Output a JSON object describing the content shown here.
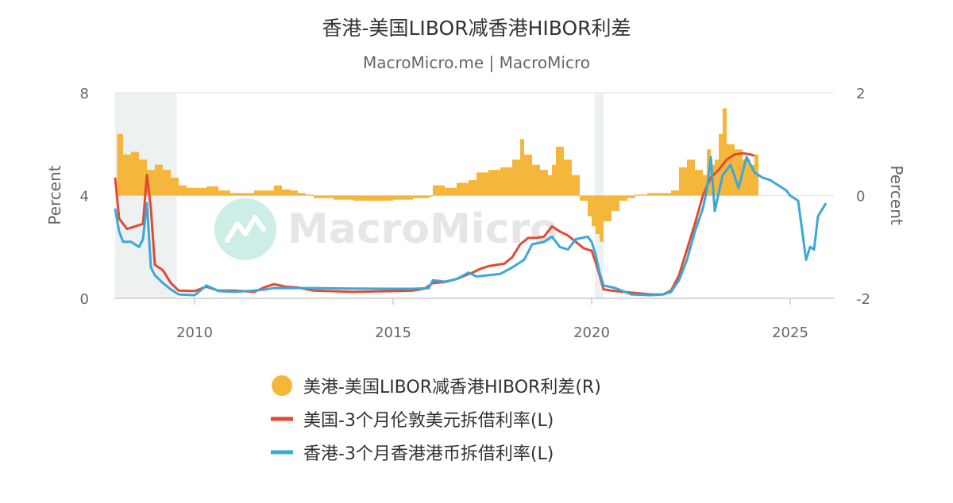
{
  "chart_data": {
    "type": "line",
    "title": "香港-美国LIBOR减香港HIBOR利差",
    "subtitle": "MacroMicro.me | MacroMicro",
    "watermark": "MacroMicro",
    "x_ticks": [
      "2010",
      "2015",
      "2020",
      "2025"
    ],
    "x_range": [
      2008.0,
      2025.95
    ],
    "y_left": {
      "label": "Percent",
      "ticks": [
        "0",
        "4",
        "8"
      ],
      "range": [
        0,
        8
      ]
    },
    "y_right": {
      "label": "Percent",
      "ticks": [
        "-2",
        "0",
        "2"
      ],
      "range": [
        -2,
        2
      ]
    },
    "shaded_periods": [
      [
        2008.0,
        2009.55
      ],
      [
        2020.08,
        2020.3
      ]
    ],
    "grid": true,
    "legend_position": "bottom",
    "series": [
      {
        "name": "美港-美国LIBOR减香港HIBOR利差(R)",
        "kind": "bar",
        "axis": "right",
        "color": "#f5b73b",
        "x": [
          2008.05,
          2008.2,
          2008.4,
          2008.6,
          2008.8,
          2009.0,
          2009.2,
          2009.4,
          2009.6,
          2009.8,
          2010.0,
          2010.3,
          2010.6,
          2010.9,
          2011.2,
          2011.5,
          2011.8,
          2012.0,
          2012.2,
          2012.4,
          2012.6,
          2012.8,
          2013.0,
          2013.5,
          2014.0,
          2014.5,
          2015.0,
          2015.5,
          2015.9,
          2016.0,
          2016.3,
          2016.6,
          2016.9,
          2017.1,
          2017.4,
          2017.7,
          2018.0,
          2018.2,
          2018.3,
          2018.5,
          2018.7,
          2018.9,
          2019.0,
          2019.1,
          2019.3,
          2019.5,
          2019.7,
          2019.9,
          2020.0,
          2020.1,
          2020.2,
          2020.3,
          2020.5,
          2020.7,
          2020.9,
          2021.1,
          2021.4,
          2021.7,
          2022.0,
          2022.2,
          2022.4,
          2022.6,
          2022.8,
          2022.9,
          2023.0,
          2023.1,
          2023.2,
          2023.3,
          2023.4,
          2023.6,
          2023.8,
          2024.0,
          2024.1
        ],
        "values": [
          1.2,
          0.8,
          0.85,
          0.7,
          0.5,
          0.6,
          0.5,
          0.35,
          0.2,
          0.15,
          0.15,
          0.18,
          0.1,
          0.05,
          0.05,
          0.1,
          0.1,
          0.2,
          0.12,
          0.1,
          0.05,
          0.02,
          -0.05,
          -0.08,
          -0.1,
          -0.1,
          -0.08,
          -0.05,
          -0.02,
          0.2,
          0.15,
          0.25,
          0.3,
          0.45,
          0.5,
          0.55,
          0.7,
          1.1,
          0.8,
          0.6,
          0.5,
          0.4,
          0.6,
          0.95,
          0.7,
          0.4,
          -0.1,
          -0.4,
          -0.6,
          -0.75,
          -0.9,
          -0.5,
          -0.3,
          -0.1,
          -0.05,
          0.02,
          0.05,
          0.05,
          0.1,
          0.55,
          0.7,
          0.5,
          0.4,
          0.9,
          0.6,
          0.7,
          1.2,
          1.7,
          1.0,
          0.9,
          0.7,
          0.6,
          0.8
        ]
      },
      {
        "name": "美国-3个月伦敦美元拆借利率(L)",
        "kind": "line",
        "axis": "left",
        "color": "#e24a33",
        "x": [
          2008.0,
          2008.1,
          2008.2,
          2008.3,
          2008.5,
          2008.7,
          2008.8,
          2008.9,
          2009.0,
          2009.2,
          2009.4,
          2009.6,
          2010.0,
          2010.3,
          2010.6,
          2011.0,
          2011.5,
          2011.8,
          2012.0,
          2012.3,
          2012.6,
          2013.0,
          2014.0,
          2015.0,
          2015.5,
          2015.8,
          2016.0,
          2016.3,
          2016.6,
          2016.8,
          2017.0,
          2017.2,
          2017.4,
          2017.6,
          2017.8,
          2018.0,
          2018.2,
          2018.4,
          2018.6,
          2018.8,
          2019.0,
          2019.2,
          2019.4,
          2019.6,
          2019.8,
          2020.0,
          2020.1,
          2020.2,
          2020.3,
          2020.5,
          2020.8,
          2021.0,
          2021.5,
          2021.8,
          2022.0,
          2022.2,
          2022.4,
          2022.6,
          2022.8,
          2023.0,
          2023.2,
          2023.4,
          2023.6,
          2023.8,
          2024.0,
          2024.1
        ],
        "values": [
          4.7,
          3.1,
          2.9,
          2.7,
          2.8,
          2.9,
          4.8,
          3.5,
          1.3,
          1.1,
          0.6,
          0.3,
          0.28,
          0.45,
          0.3,
          0.3,
          0.25,
          0.45,
          0.55,
          0.45,
          0.42,
          0.3,
          0.25,
          0.28,
          0.3,
          0.38,
          0.6,
          0.63,
          0.75,
          0.88,
          1.0,
          1.15,
          1.25,
          1.3,
          1.35,
          1.6,
          2.1,
          2.35,
          2.35,
          2.4,
          2.8,
          2.6,
          2.45,
          2.2,
          1.95,
          1.85,
          1.4,
          0.9,
          0.35,
          0.3,
          0.25,
          0.22,
          0.15,
          0.15,
          0.3,
          0.9,
          1.9,
          2.9,
          4.0,
          4.7,
          5.0,
          5.4,
          5.6,
          5.65,
          5.6,
          5.55
        ]
      },
      {
        "name": "香港-3个月香港港币拆借利率(L)",
        "kind": "line",
        "axis": "left",
        "color": "#3aa8d8",
        "x": [
          2008.0,
          2008.1,
          2008.2,
          2008.4,
          2008.6,
          2008.7,
          2008.8,
          2008.9,
          2009.0,
          2009.2,
          2009.4,
          2009.6,
          2010.0,
          2010.3,
          2010.6,
          2011.0,
          2011.5,
          2011.8,
          2012.0,
          2013.0,
          2014.0,
          2015.0,
          2015.5,
          2015.9,
          2016.0,
          2016.3,
          2016.6,
          2016.9,
          2017.1,
          2017.4,
          2017.7,
          2018.0,
          2018.3,
          2018.5,
          2018.8,
          2019.0,
          2019.2,
          2019.4,
          2019.6,
          2019.9,
          2020.0,
          2020.1,
          2020.2,
          2020.3,
          2020.6,
          2021.0,
          2021.5,
          2021.8,
          2022.0,
          2022.2,
          2022.4,
          2022.6,
          2022.8,
          2022.9,
          2023.0,
          2023.1,
          2023.3,
          2023.5,
          2023.7,
          2023.9,
          2024.1,
          2024.3,
          2024.5,
          2024.7,
          2024.9,
          2025.0,
          2025.2,
          2025.4,
          2025.5,
          2025.6,
          2025.7,
          2025.9
        ],
        "values": [
          3.5,
          2.6,
          2.2,
          2.2,
          2.0,
          2.3,
          3.7,
          1.2,
          0.9,
          0.6,
          0.35,
          0.15,
          0.12,
          0.5,
          0.28,
          0.25,
          0.3,
          0.35,
          0.4,
          0.4,
          0.38,
          0.37,
          0.37,
          0.4,
          0.7,
          0.65,
          0.75,
          1.0,
          0.85,
          0.9,
          0.95,
          1.2,
          1.5,
          2.1,
          2.2,
          2.4,
          2.0,
          1.9,
          2.3,
          2.4,
          2.2,
          1.7,
          1.0,
          0.5,
          0.4,
          0.15,
          0.12,
          0.15,
          0.25,
          0.7,
          1.5,
          2.6,
          3.5,
          4.2,
          5.5,
          3.4,
          4.8,
          5.2,
          4.3,
          5.5,
          4.9,
          4.7,
          4.6,
          4.4,
          4.2,
          4.0,
          3.8,
          1.5,
          2.0,
          1.9,
          3.2,
          3.7
        ]
      }
    ]
  },
  "legend": [
    {
      "label": "美港-美国LIBOR减香港HIBOR利差(R)",
      "color": "#f5b73b",
      "shape": "circle"
    },
    {
      "label": "美国-3个月伦敦美元拆借利率(L)",
      "color": "#e24a33",
      "shape": "line"
    },
    {
      "label": "香港-3个月香港港币拆借利率(L)",
      "color": "#3aa8d8",
      "shape": "line"
    }
  ]
}
